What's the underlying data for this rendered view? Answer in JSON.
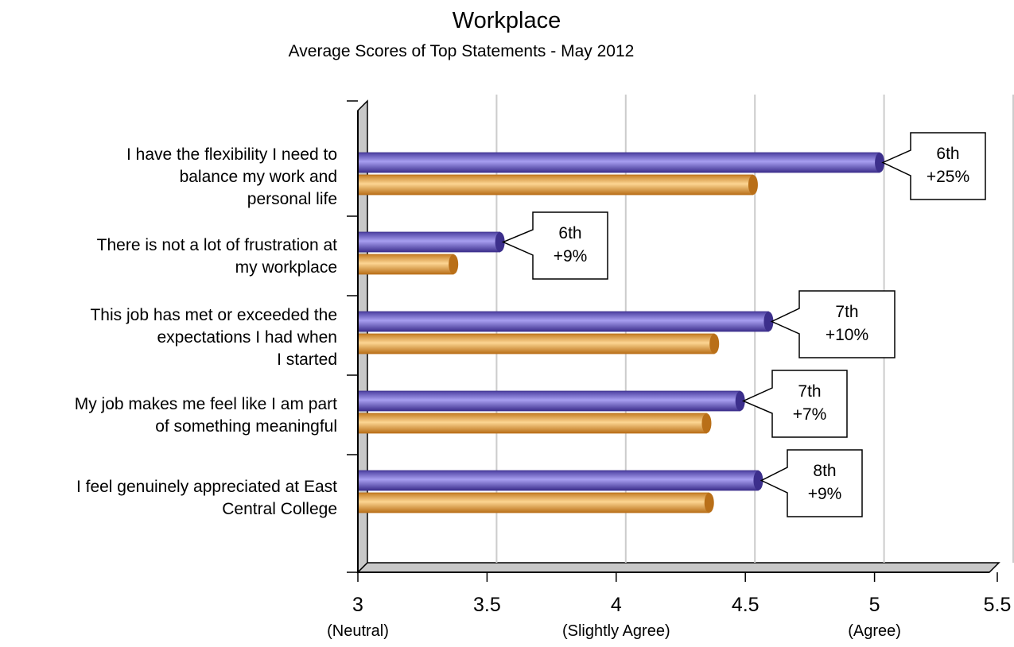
{
  "chart_data": {
    "type": "bar",
    "orientation": "horizontal",
    "title": "Workplace",
    "subtitle": "Average Scores of Top Statements - May 2012",
    "categories": [
      [
        "I have the flexibility I need to",
        "balance my work and",
        "personal life"
      ],
      [
        "There is not a lot of frustration at",
        "my workplace"
      ],
      [
        "This job has met or exceeded the",
        "expectations I had when",
        "I started"
      ],
      [
        "My job makes me feel like I am part",
        "of something meaningful"
      ],
      [
        "I feel genuinely appreciated at East",
        "Central College"
      ]
    ],
    "series": [
      {
        "color": "#6a5fc1",
        "values": [
          5.02,
          3.55,
          4.59,
          4.48,
          4.55
        ]
      },
      {
        "color": "#e8a64c",
        "values": [
          4.53,
          3.37,
          4.38,
          4.35,
          4.36
        ]
      }
    ],
    "callouts": [
      [
        "6th",
        "+25%"
      ],
      [
        "6th",
        "+9%"
      ],
      [
        "7th",
        "+10%"
      ],
      [
        "7th",
        "+7%"
      ],
      [
        "8th",
        "+9%"
      ]
    ],
    "xlim": [
      3,
      5.5
    ],
    "x_ticks": [
      "3",
      "3.5",
      "4",
      "4.5",
      "5",
      "5.5"
    ],
    "x_tick_sublabels": [
      "(Neutral)",
      "",
      "(Slightly Agree)",
      "",
      "(Agree)",
      ""
    ],
    "grid": true,
    "colors": {
      "series1": "#6a5fc1",
      "series2": "#e8a64c",
      "grid": "#cccccc",
      "wall": "#c8c8c8"
    }
  }
}
